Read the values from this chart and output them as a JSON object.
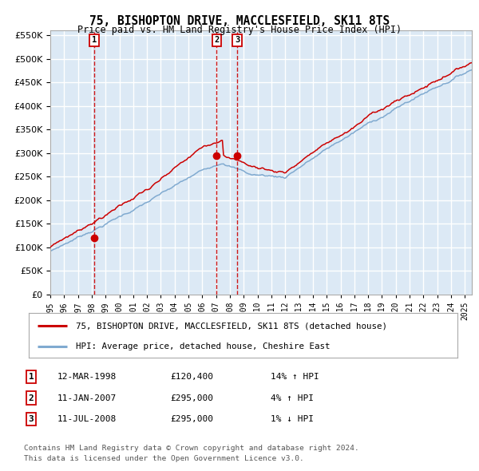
{
  "title": "75, BISHOPTON DRIVE, MACCLESFIELD, SK11 8TS",
  "subtitle": "Price paid vs. HM Land Registry's House Price Index (HPI)",
  "ylim": [
    0,
    560000
  ],
  "yticks": [
    0,
    50000,
    100000,
    150000,
    200000,
    250000,
    300000,
    350000,
    400000,
    450000,
    500000,
    550000
  ],
  "plot_bg_color": "#dce9f5",
  "grid_color": "#ffffff",
  "red_line_color": "#cc0000",
  "blue_line_color": "#80aad0",
  "vline_color": "#cc0000",
  "marker_color": "#cc0000",
  "purchase_dates": [
    1998.19,
    2007.03,
    2008.53
  ],
  "purchase_prices": [
    120400,
    295000,
    295000
  ],
  "purchase_labels": [
    "1",
    "2",
    "3"
  ],
  "legend_entries": [
    "75, BISHOPTON DRIVE, MACCLESFIELD, SK11 8TS (detached house)",
    "HPI: Average price, detached house, Cheshire East"
  ],
  "table_rows": [
    {
      "num": "1",
      "date": "12-MAR-1998",
      "price": "£120,400",
      "hpi": "14% ↑ HPI"
    },
    {
      "num": "2",
      "date": "11-JAN-2007",
      "price": "£295,000",
      "hpi": "4% ↑ HPI"
    },
    {
      "num": "3",
      "date": "11-JUL-2008",
      "price": "£295,000",
      "hpi": "1% ↓ HPI"
    }
  ],
  "footnote1": "Contains HM Land Registry data © Crown copyright and database right 2024.",
  "footnote2": "This data is licensed under the Open Government Licence v3.0.",
  "xmin": 1995.0,
  "xmax": 2025.5
}
